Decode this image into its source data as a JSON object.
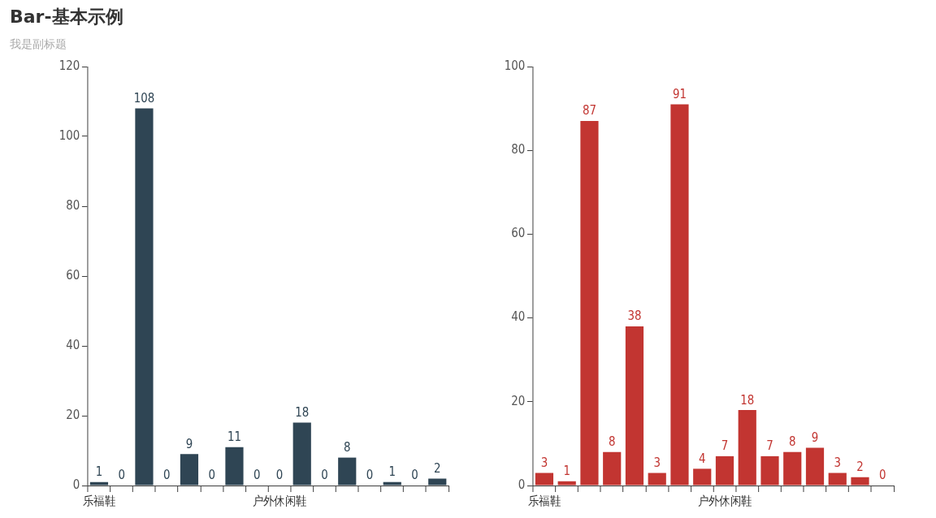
{
  "chart_data": [
    {
      "type": "bar",
      "title": "Bar-基本示例",
      "subtitle": "我是副标题",
      "categories": [
        "乐福鞋",
        null,
        null,
        null,
        null,
        null,
        null,
        null,
        "户外休闲鞋",
        null,
        null,
        null,
        null,
        null,
        null,
        null
      ],
      "series": [
        {
          "color": "#2f4554",
          "values": [
            1,
            0,
            108,
            0,
            9,
            0,
            11,
            0,
            0,
            18,
            0,
            8,
            0,
            1,
            0,
            2
          ]
        }
      ],
      "ylim": [
        0,
        120
      ],
      "yticks": [
        0,
        20,
        40,
        60,
        80,
        100,
        120
      ],
      "grid": false,
      "legend": false,
      "data_labels": true
    },
    {
      "type": "bar",
      "categories": [
        "乐福鞋",
        null,
        null,
        null,
        null,
        null,
        null,
        null,
        "户外休闲鞋",
        null,
        null,
        null,
        null,
        null,
        null,
        null
      ],
      "series": [
        {
          "color": "#c23531",
          "values": [
            3,
            1,
            87,
            8,
            38,
            3,
            91,
            4,
            7,
            18,
            7,
            8,
            9,
            3,
            2,
            0
          ]
        }
      ],
      "ylim": [
        0,
        100
      ],
      "yticks": [
        0,
        20,
        40,
        60,
        80,
        100
      ],
      "grid": false,
      "legend": false,
      "data_labels": true
    }
  ]
}
